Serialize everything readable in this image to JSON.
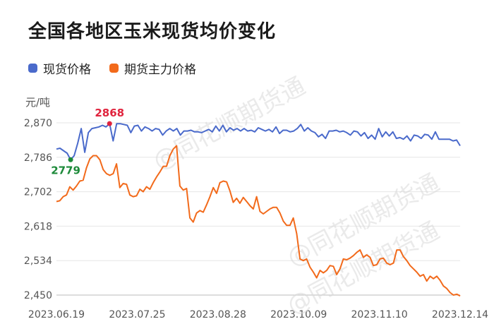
{
  "chart_data": {
    "type": "line",
    "title": "全国各地区玉米现货均价变化",
    "ylabel": "元/吨",
    "ylim": [
      2450,
      2870
    ],
    "yticks": [
      "2,870",
      "2,786",
      "2,702",
      "2,618",
      "2,534",
      "2,450"
    ],
    "xticks": [
      "2023.06.19",
      "2023.07.25",
      "2023.08.28",
      "2023.10.09",
      "2023.11.10",
      "2023.12.14"
    ],
    "grid": true,
    "legend_position": "top-left",
    "watermark": "@同花顺期货通",
    "series": [
      {
        "name": "现货价格",
        "color": "#4a6acb",
        "values": [
          2806,
          2808,
          2802,
          2796,
          2780,
          2790,
          2820,
          2856,
          2798,
          2846,
          2856,
          2858,
          2860,
          2864,
          2860,
          2868,
          2826,
          2868,
          2868,
          2866,
          2864,
          2846,
          2862,
          2864,
          2850,
          2860,
          2856,
          2850,
          2856,
          2854,
          2840,
          2850,
          2856,
          2850,
          2856,
          2840,
          2850,
          2850,
          2852,
          2848,
          2848,
          2846,
          2850,
          2854,
          2848,
          2862,
          2850,
          2864,
          2848,
          2858,
          2852,
          2856,
          2850,
          2856,
          2850,
          2852,
          2848,
          2858,
          2854,
          2850,
          2854,
          2848,
          2860,
          2844,
          2852,
          2852,
          2848,
          2850,
          2856,
          2866,
          2850,
          2858,
          2850,
          2846,
          2836,
          2842,
          2832,
          2850,
          2850,
          2852,
          2848,
          2850,
          2846,
          2840,
          2850,
          2848,
          2838,
          2846,
          2832,
          2840,
          2830,
          2856,
          2836,
          2848,
          2838,
          2848,
          2832,
          2834,
          2830,
          2838,
          2826,
          2840,
          2838,
          2832,
          2842,
          2840,
          2830,
          2848,
          2830,
          2830,
          2830,
          2830,
          2826,
          2828,
          2814
        ],
        "annotations": [
          {
            "label": "2868",
            "index": 15,
            "value": 2868,
            "color": "#e0233d"
          },
          {
            "label": "2779",
            "index": 4,
            "value": 2780,
            "color": "#1d8a3a"
          }
        ]
      },
      {
        "name": "期货主力价格",
        "color": "#f26a1b",
        "values": [
          2678,
          2680,
          2690,
          2694,
          2714,
          2706,
          2716,
          2728,
          2730,
          2760,
          2782,
          2790,
          2790,
          2780,
          2756,
          2746,
          2742,
          2746,
          2770,
          2712,
          2722,
          2720,
          2694,
          2690,
          2692,
          2708,
          2702,
          2714,
          2708,
          2724,
          2738,
          2750,
          2764,
          2764,
          2790,
          2806,
          2814,
          2716,
          2706,
          2710,
          2638,
          2628,
          2650,
          2656,
          2652,
          2670,
          2690,
          2712,
          2698,
          2724,
          2728,
          2726,
          2704,
          2676,
          2686,
          2674,
          2688,
          2678,
          2668,
          2660,
          2690,
          2654,
          2648,
          2654,
          2660,
          2664,
          2664,
          2650,
          2630,
          2620,
          2620,
          2638,
          2600,
          2538,
          2534,
          2538,
          2518,
          2506,
          2492,
          2510,
          2504,
          2510,
          2522,
          2520,
          2500,
          2514,
          2538,
          2536,
          2540,
          2546,
          2554,
          2560,
          2542,
          2548,
          2542,
          2522,
          2524,
          2538,
          2540,
          2528,
          2524,
          2528,
          2560,
          2560,
          2544,
          2534,
          2522,
          2514,
          2506,
          2496,
          2500,
          2484,
          2496,
          2490,
          2496,
          2486,
          2472,
          2466,
          2456,
          2450,
          2452,
          2448
        ]
      }
    ]
  }
}
